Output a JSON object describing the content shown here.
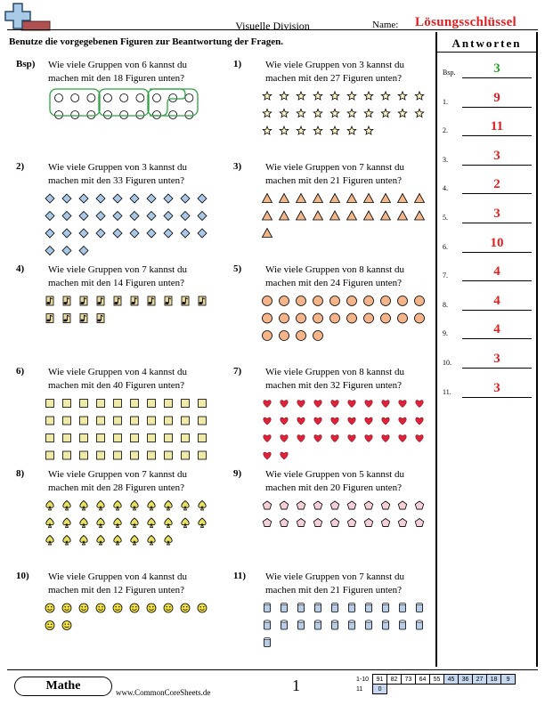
{
  "header": {
    "title": "Visuelle Division",
    "name_label": "Name:",
    "answer_key": "Lösungsschlüssel",
    "instructions": "Benutze die vorgegebenen Figuren zur Beantwortung der Fragen."
  },
  "answers": {
    "heading": "Antworten",
    "items": [
      {
        "label": "Bsp.",
        "value": "3",
        "color": "#2aa02a"
      },
      {
        "label": "1.",
        "value": "9",
        "color": "#e02020"
      },
      {
        "label": "2.",
        "value": "11",
        "color": "#e02020"
      },
      {
        "label": "3.",
        "value": "3",
        "color": "#e02020"
      },
      {
        "label": "4.",
        "value": "2",
        "color": "#e02020"
      },
      {
        "label": "5.",
        "value": "3",
        "color": "#e02020"
      },
      {
        "label": "6.",
        "value": "10",
        "color": "#e02020"
      },
      {
        "label": "7.",
        "value": "4",
        "color": "#e02020"
      },
      {
        "label": "8.",
        "value": "4",
        "color": "#e02020"
      },
      {
        "label": "9.",
        "value": "4",
        "color": "#e02020"
      },
      {
        "label": "10.",
        "value": "3",
        "color": "#e02020"
      },
      {
        "label": "11.",
        "value": "3",
        "color": "#e02020"
      }
    ]
  },
  "questions": [
    {
      "num": "Bsp)",
      "line1": "Wie viele Gruppen von 6 kannst du",
      "line2": "machen mit den 18 Figuren unten?",
      "count": 18,
      "shape": "circle-open",
      "fill": "#ffffff"
    },
    {
      "num": "1)",
      "line1": "Wie viele Gruppen von 3 kannst du",
      "line2": "machen mit den 27 Figuren unten?",
      "count": 27,
      "shape": "star",
      "fill": "#fff6c8"
    },
    {
      "num": "2)",
      "line1": "Wie viele Gruppen von 3 kannst du",
      "line2": "machen mit den 33 Figuren unten?",
      "count": 33,
      "shape": "diamond",
      "fill": "#a9c8e8"
    },
    {
      "num": "3)",
      "line1": "Wie viele Gruppen von 7 kannst du",
      "line2": "machen mit den 21 Figuren unten?",
      "count": 21,
      "shape": "triangle",
      "fill": "#f2b88c"
    },
    {
      "num": "4)",
      "line1": "Wie viele Gruppen von 7 kannst du",
      "line2": "machen mit den 14 Figuren unten?",
      "count": 14,
      "shape": "note",
      "fill": "#e8d9a0"
    },
    {
      "num": "5)",
      "line1": "Wie viele Gruppen von 8 kannst du",
      "line2": "machen mit den 24 Figuren unten?",
      "count": 24,
      "shape": "circle",
      "fill": "#f5b48a"
    },
    {
      "num": "6)",
      "line1": "Wie viele Gruppen von 4 kannst du",
      "line2": "machen mit den 40 Figuren unten?",
      "count": 40,
      "shape": "square",
      "fill": "#efeaa8"
    },
    {
      "num": "7)",
      "line1": "Wie viele Gruppen von 8 kannst du",
      "line2": "machen mit den 32 Figuren unten?",
      "count": 32,
      "shape": "heart",
      "fill": "#e0223a"
    },
    {
      "num": "8)",
      "line1": "Wie viele Gruppen von 7 kannst du",
      "line2": "machen mit den 28 Figuren unten?",
      "count": 28,
      "shape": "spade",
      "fill": "#e8e060"
    },
    {
      "num": "9)",
      "line1": "Wie viele Gruppen von 5 kannst du",
      "line2": "machen mit den 20 Figuren unten?",
      "count": 20,
      "shape": "pentagon",
      "fill": "#f5d0d8"
    },
    {
      "num": "10)",
      "line1": "Wie viele Gruppen von 4 kannst du",
      "line2": "machen mit den 12 Figuren unten?",
      "count": 12,
      "shape": "smiley",
      "fill": "#f0e040"
    },
    {
      "num": "11)",
      "line1": "Wie viele Gruppen von 7 kannst du",
      "line2": "machen mit den 21 Figuren unten?",
      "count": 21,
      "shape": "cup",
      "fill": "#b8cde8"
    }
  ],
  "footer": {
    "badge": "Mathe",
    "site": "www.CommonCoreSheets.de",
    "page": "1",
    "score_row1_label": "1-10",
    "score_row1": [
      "91",
      "82",
      "73",
      "64",
      "55",
      "45",
      "36",
      "27",
      "18",
      "9"
    ],
    "score_row2_label": "11",
    "score_row2": [
      "0"
    ]
  }
}
